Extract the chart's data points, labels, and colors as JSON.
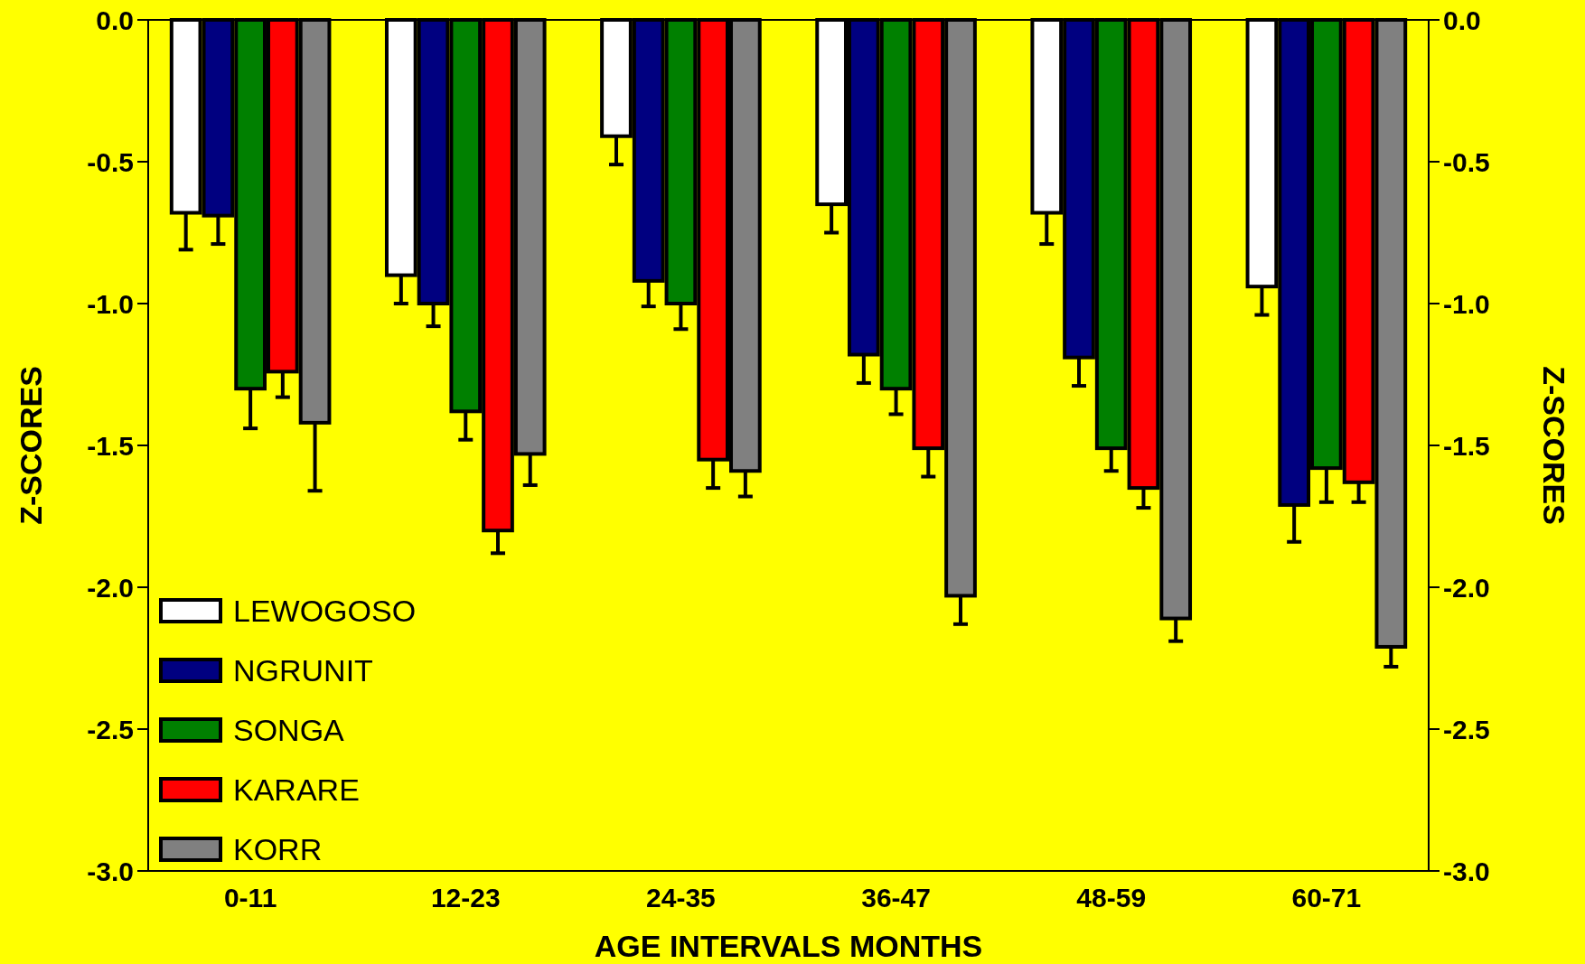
{
  "chart_data": {
    "type": "bar",
    "xlabel": "AGE INTERVALS MONTHS",
    "ylabel": "Z-SCORES",
    "y2label": "Z-SCORES",
    "categories": [
      "0-11",
      "12-23",
      "24-35",
      "36-47",
      "48-59",
      "60-71"
    ],
    "ylim": [
      -3,
      0
    ],
    "yticks": [
      {
        "value": -3,
        "label": "-3.0"
      },
      {
        "value": -2.5,
        "label": "-2.5"
      },
      {
        "value": -2,
        "label": "-2.0"
      },
      {
        "value": -1.5,
        "label": "-1.5"
      },
      {
        "value": -1,
        "label": "-1.0"
      },
      {
        "value": -0.5,
        "label": "-0.5"
      },
      {
        "value": 0,
        "label": "0.0"
      }
    ],
    "y2lim": [
      -3,
      0
    ],
    "y2ticks": [
      {
        "value": -3,
        "label": "-3.0"
      },
      {
        "value": -2.5,
        "label": "-2.5"
      },
      {
        "value": -2,
        "label": "-2.0"
      },
      {
        "value": -1.5,
        "label": "-1.5"
      },
      {
        "value": -1,
        "label": "-1.0"
      },
      {
        "value": -0.5,
        "label": "-0.5"
      },
      {
        "value": 0,
        "label": "0.0"
      }
    ],
    "legend": "bottom left",
    "grid": false,
    "series": [
      {
        "name": "LEWOGOSO",
        "color": "#ffffff",
        "values": [
          -0.68,
          -0.9,
          -0.41,
          -0.65,
          -0.68,
          -0.94
        ],
        "errors": [
          [
            -0.81,
            -0.68
          ],
          [
            -1.0,
            -0.9
          ],
          [
            -0.51,
            -0.41
          ],
          [
            -0.75,
            -0.65
          ],
          [
            -0.79,
            -0.68
          ],
          [
            -1.04,
            -0.94
          ]
        ]
      },
      {
        "name": "NGRUNIT",
        "color": "#000080",
        "values": [
          -0.69,
          -1.0,
          -0.92,
          -1.18,
          -1.19,
          -1.71
        ],
        "errors": [
          [
            -0.79,
            -0.69
          ],
          [
            -1.08,
            -1.0
          ],
          [
            -1.01,
            -0.92
          ],
          [
            -1.28,
            -1.18
          ],
          [
            -1.29,
            -1.19
          ],
          [
            -1.84,
            -1.71
          ]
        ]
      },
      {
        "name": "SONGA",
        "color": "#008000",
        "values": [
          -1.3,
          -1.38,
          -1.0,
          -1.3,
          -1.51,
          -1.58
        ],
        "errors": [
          [
            -1.44,
            -1.3
          ],
          [
            -1.48,
            -1.38
          ],
          [
            -1.09,
            -1.0
          ],
          [
            -1.39,
            -1.3
          ],
          [
            -1.59,
            -1.51
          ],
          [
            -1.7,
            -1.58
          ]
        ]
      },
      {
        "name": "KARARE",
        "color": "#ff0000",
        "values": [
          -1.24,
          -1.8,
          -1.55,
          -1.51,
          -1.65,
          -1.63
        ],
        "errors": [
          [
            -1.33,
            -1.24
          ],
          [
            -1.88,
            -1.8
          ],
          [
            -1.65,
            -1.55
          ],
          [
            -1.61,
            -1.51
          ],
          [
            -1.72,
            -1.65
          ],
          [
            -1.7,
            -1.63
          ]
        ]
      },
      {
        "name": "KORR",
        "color": "#808080",
        "values": [
          -1.42,
          -1.53,
          -1.59,
          -2.03,
          -2.11,
          -2.21
        ],
        "errors": [
          [
            -1.66,
            -1.42
          ],
          [
            -1.64,
            -1.53
          ],
          [
            -1.68,
            -1.59
          ],
          [
            -2.13,
            -2.03
          ],
          [
            -2.19,
            -2.11
          ],
          [
            -2.28,
            -2.21
          ]
        ]
      }
    ]
  }
}
